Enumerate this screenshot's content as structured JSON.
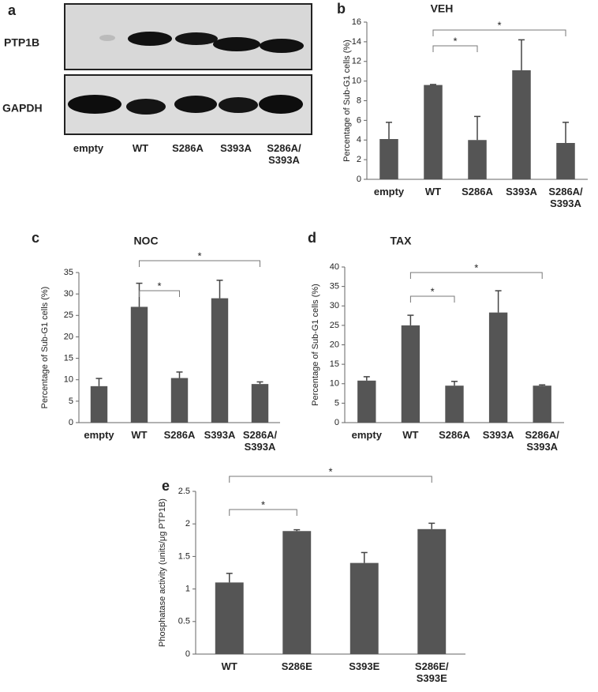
{
  "blot": {
    "panel": "a",
    "rows": [
      "PTP1B",
      "GAPDH"
    ],
    "lanes": [
      "empty",
      "WT",
      "S286A",
      "S393A",
      "S286A/\nS393A"
    ]
  },
  "chart_data": [
    {
      "type": "bar",
      "panel": "b",
      "title": "VEH",
      "ylabel": "Percentage of Sub-G1 cells (%)",
      "categories": [
        "empty",
        "WT",
        "S286A",
        "S393A",
        "S286A/\nS393A"
      ],
      "values": [
        4.1,
        9.6,
        4.0,
        11.1,
        3.7
      ],
      "errors": [
        1.7,
        0.05,
        2.4,
        3.1,
        2.1
      ],
      "color": "#555555",
      "ylim": [
        0,
        16
      ],
      "yticks": [
        0,
        2,
        4,
        6,
        8,
        10,
        12,
        14,
        16
      ],
      "significance": [
        "*",
        "*"
      ]
    },
    {
      "type": "bar",
      "panel": "c",
      "title": "NOC",
      "ylabel": "Percentage of Sub-G1 cells (%)",
      "categories": [
        "empty",
        "WT",
        "S286A",
        "S393A",
        "S286A/\nS393A"
      ],
      "values": [
        8.5,
        27,
        10.4,
        29,
        9
      ],
      "errors": [
        1.8,
        5.5,
        1.4,
        4.2,
        0.5
      ],
      "color": "#555555",
      "ylim": [
        0,
        35
      ],
      "yticks": [
        0,
        5,
        10,
        15,
        20,
        25,
        30,
        35
      ],
      "significance": [
        "*",
        "*"
      ]
    },
    {
      "type": "bar",
      "panel": "d",
      "title": "TAX",
      "ylabel": "Percentage of Sub-G1 cells (%)",
      "categories": [
        "empty",
        "WT",
        "S286A",
        "S393A",
        "S286A/\nS393A"
      ],
      "values": [
        10.8,
        25,
        9.5,
        28.3,
        9.5
      ],
      "errors": [
        1,
        2.6,
        1.1,
        5.6,
        0.2
      ],
      "color": "#555555",
      "ylim": [
        0,
        40
      ],
      "yticks": [
        0,
        5,
        10,
        15,
        20,
        25,
        30,
        35,
        40
      ],
      "significance": [
        "*",
        "*"
      ]
    },
    {
      "type": "bar",
      "panel": "e",
      "ylabel": "Phosphatase activity (units/μg PTP1B)",
      "categories": [
        "WT",
        "S286E",
        "S393E",
        "S286E/\nS393E"
      ],
      "values": [
        1.1,
        1.89,
        1.4,
        1.92
      ],
      "errors": [
        0.14,
        0.02,
        0.16,
        0.09
      ],
      "color": "#555555",
      "ylim": [
        0,
        2.5
      ],
      "yticks": [
        0,
        0.5,
        1,
        1.5,
        2,
        2.5
      ],
      "significance": [
        "*",
        "*"
      ]
    }
  ]
}
